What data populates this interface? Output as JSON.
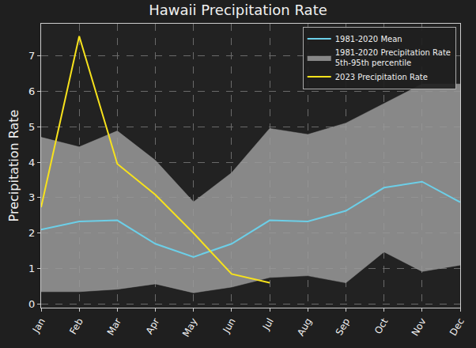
{
  "chart_data": {
    "type": "line",
    "title": "Hawaii Precipitation Rate",
    "ylabel": "Precipitation Rate",
    "categories": [
      "Jan",
      "Feb",
      "Mar",
      "Apr",
      "May",
      "Jun",
      "Jul",
      "Aug",
      "Sep",
      "Oct",
      "Nov",
      "Dec"
    ],
    "ylim": [
      -0.1,
      7.9
    ],
    "yticks": [
      0,
      1,
      2,
      3,
      4,
      5,
      6,
      7
    ],
    "grid": true,
    "legend": "upper right",
    "series": [
      {
        "name": "2023 Precipitation Rate",
        "color": "#f7e21c",
        "values": [
          2.73,
          7.55,
          3.95,
          3.08,
          2.0,
          0.85,
          0.6,
          null,
          null,
          null,
          null,
          null
        ]
      },
      {
        "name": "1981-2020 Precipitation Rate\n5th-95th percentile",
        "color": "#9a9a9a",
        "type": "band",
        "lower": [
          0.35,
          0.35,
          0.42,
          0.57,
          0.32,
          0.48,
          0.75,
          0.8,
          0.6,
          1.47,
          0.92,
          1.1
        ],
        "upper": [
          4.7,
          4.43,
          4.88,
          4.05,
          2.88,
          3.7,
          4.95,
          4.78,
          5.1,
          5.65,
          6.2,
          6.2
        ]
      },
      {
        "name": "1981-2020 Mean",
        "color": "#6ccfe8",
        "values": [
          2.1,
          2.33,
          2.36,
          1.7,
          1.33,
          1.7,
          2.36,
          2.33,
          2.63,
          3.28,
          3.45,
          2.87
        ]
      }
    ]
  }
}
